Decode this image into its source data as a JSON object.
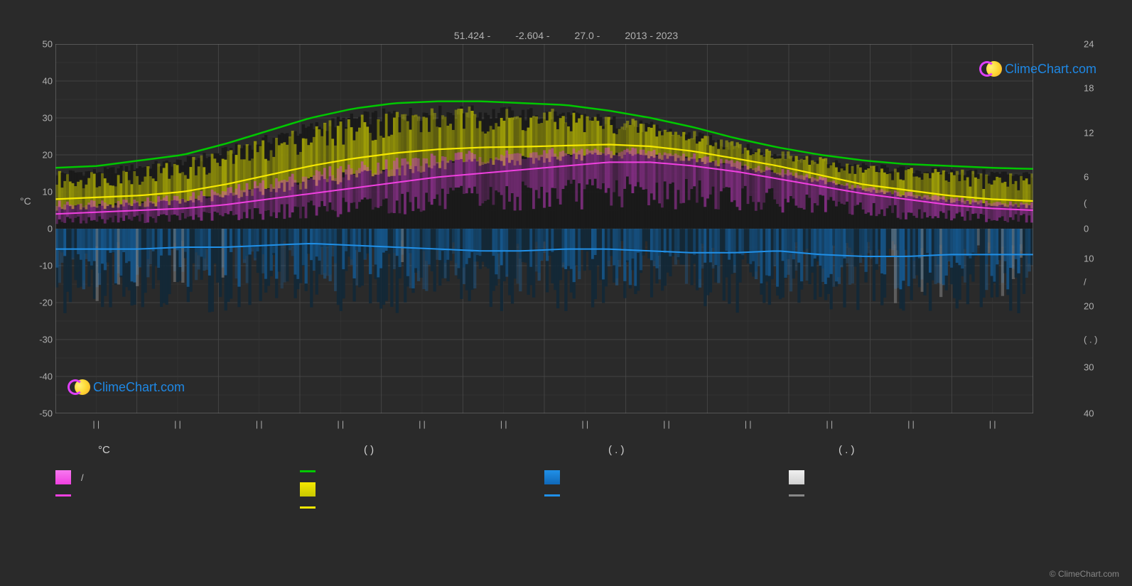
{
  "chart": {
    "type": "climate-chart",
    "title_parts": [
      "51.424 -",
      "-2.604 -",
      "27.0 -",
      "2013 - 2023"
    ],
    "background_color": "#2a2a2a",
    "plot_background": "#2a2a2a",
    "grid_color": "#4a4a4a",
    "grid_color_minor": "#3a3a3a",
    "axis_color": "#808080",
    "text_color": "#b0b0b0",
    "y_left": {
      "label": "°C",
      "min": -50,
      "max": 50,
      "step": 10,
      "ticks": [
        50,
        40,
        30,
        20,
        10,
        0,
        -10,
        -20,
        -30,
        -40,
        -50
      ]
    },
    "y_right": {
      "label": "( . ) /",
      "ticks": [
        24,
        18,
        12,
        6,
        "(",
        0,
        10,
        "/",
        20,
        "( . )",
        30,
        40
      ]
    },
    "x": {
      "months": 12,
      "tick_label": "| |"
    },
    "series": {
      "temp_max_line": {
        "color": "#00c800",
        "width": 2.5,
        "data": [
          16.5,
          17,
          18.5,
          20,
          23,
          26.5,
          30,
          32.5,
          34,
          34.5,
          34.5,
          34,
          33.5,
          32,
          30,
          27.5,
          24.5,
          22,
          20,
          18.5,
          17.5,
          17,
          16.5,
          16.2
        ]
      },
      "temp_avg_line": {
        "color": "#f5e800",
        "width": 2.2,
        "data": [
          8,
          8.5,
          9,
          10,
          12,
          14.5,
          17,
          19,
          20.5,
          21.5,
          22,
          22.2,
          22.5,
          22.8,
          22.3,
          21,
          19,
          17,
          14.5,
          12,
          10.5,
          9,
          8,
          7.5
        ]
      },
      "temp_min_line": {
        "color": "#f040e0",
        "width": 2,
        "data": [
          4,
          4.5,
          5,
          5.5,
          6.5,
          8,
          9.5,
          11,
          12.5,
          14,
          15,
          16,
          17,
          18,
          18,
          17,
          15.5,
          13.5,
          11.5,
          9.5,
          8,
          6.5,
          5.5,
          5
        ]
      },
      "precip_line": {
        "color": "#2090e8",
        "width": 2,
        "data": [
          -5.5,
          -5.5,
          -5.5,
          -5,
          -5,
          -4.5,
          -4,
          -4.5,
          -5,
          -5.5,
          -6,
          -6,
          -5.5,
          -5.5,
          -6,
          -6.5,
          -6.5,
          -6,
          -7,
          -7.5,
          -7.5,
          -7,
          -7,
          -7
        ]
      },
      "temp_bars": {
        "top_color": "#d4d400",
        "top_color_alpha": 0.55,
        "mid_color": "#e040e0",
        "mid_color_alpha": 0.4,
        "bottom_color": "#1a1a1a"
      },
      "precip_bars": {
        "color": "#1878c8",
        "color_alpha": 0.45,
        "dark_color": "#102838"
      },
      "snow_bars": {
        "color": "#d0d0d0",
        "color_alpha": 0.3
      }
    }
  },
  "logo": {
    "text": "ClimeChart.com",
    "color": "#1e88e5"
  },
  "legend": {
    "headers": [
      "°C",
      "(          )",
      "( . )",
      "( . )"
    ],
    "col1": [
      {
        "type": "gradient",
        "colors": [
          "#f040e0",
          "#f878f0"
        ],
        "label": "/"
      },
      {
        "type": "line",
        "color": "#f040e0",
        "label": ""
      }
    ],
    "col2": [
      {
        "type": "line",
        "color": "#00c800",
        "label": ""
      },
      {
        "type": "gradient",
        "colors": [
          "#c8c800",
          "#f5e800"
        ],
        "label": ""
      },
      {
        "type": "line",
        "color": "#f5e800",
        "label": ""
      }
    ],
    "col3": [
      {
        "type": "gradient",
        "colors": [
          "#1068b8",
          "#2090e8"
        ],
        "label": ""
      },
      {
        "type": "line",
        "color": "#2090e8",
        "label": ""
      }
    ],
    "col4": [
      {
        "type": "gradient",
        "colors": [
          "#d0d0d0",
          "#f0f0f0"
        ],
        "label": ""
      },
      {
        "type": "line",
        "color": "#888888",
        "label": ""
      }
    ]
  },
  "copyright": "© ClimeChart.com"
}
